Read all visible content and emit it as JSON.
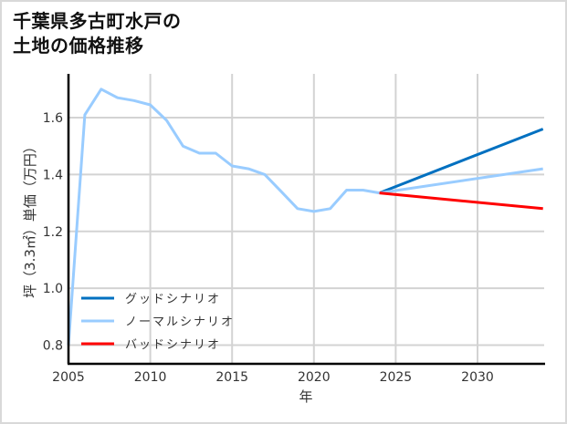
{
  "title_lines": [
    "千葉県多古町水戸の",
    "土地の価格推移"
  ],
  "chart_data": {
    "type": "line",
    "title": "千葉県多古町水戸の土地の価格推移",
    "xlabel": "年",
    "ylabel": "坪（3.3㎡）単価（万円）",
    "xlim": [
      2005,
      2034
    ],
    "ylim": [
      0.73,
      1.75
    ],
    "xticks": [
      2005,
      2010,
      2015,
      2020,
      2025,
      2030
    ],
    "yticks": [
      0.8,
      1.0,
      1.2,
      1.4,
      1.6
    ],
    "xtick_labels": [
      "2005",
      "2010",
      "2015",
      "2020",
      "2025",
      "2030"
    ],
    "ytick_labels": [
      "0.8",
      "1.0",
      "1.2",
      "1.4",
      "1.6"
    ],
    "grid": true,
    "legend_position": "lower left",
    "series": [
      {
        "name": "ノーマルシナリオ (実績)",
        "color": "#99ccff",
        "x": [
          2005,
          2006,
          2007,
          2008,
          2009,
          2010,
          2011,
          2012,
          2013,
          2014,
          2015,
          2016,
          2017,
          2018,
          2019,
          2020,
          2021,
          2022,
          2023,
          2024
        ],
        "values": [
          0.8,
          1.61,
          1.7,
          1.67,
          1.66,
          1.645,
          1.59,
          1.5,
          1.475,
          1.475,
          1.43,
          1.42,
          1.4,
          1.34,
          1.28,
          1.27,
          1.28,
          1.345,
          1.345,
          1.335
        ]
      },
      {
        "name": "グッドシナリオ",
        "color": "#0070c0",
        "x": [
          2024,
          2034
        ],
        "values": [
          1.335,
          1.56
        ]
      },
      {
        "name": "ノーマルシナリオ",
        "color": "#99ccff",
        "x": [
          2024,
          2034
        ],
        "values": [
          1.335,
          1.42
        ]
      },
      {
        "name": "バッドシナリオ",
        "color": "#ff0000",
        "x": [
          2024,
          2034
        ],
        "values": [
          1.335,
          1.28
        ]
      }
    ]
  },
  "legend": [
    {
      "label": "グッドシナリオ",
      "color": "#0070c0"
    },
    {
      "label": "ノーマルシナリオ",
      "color": "#99ccff"
    },
    {
      "label": "バッドシナリオ",
      "color": "#ff0000"
    }
  ]
}
